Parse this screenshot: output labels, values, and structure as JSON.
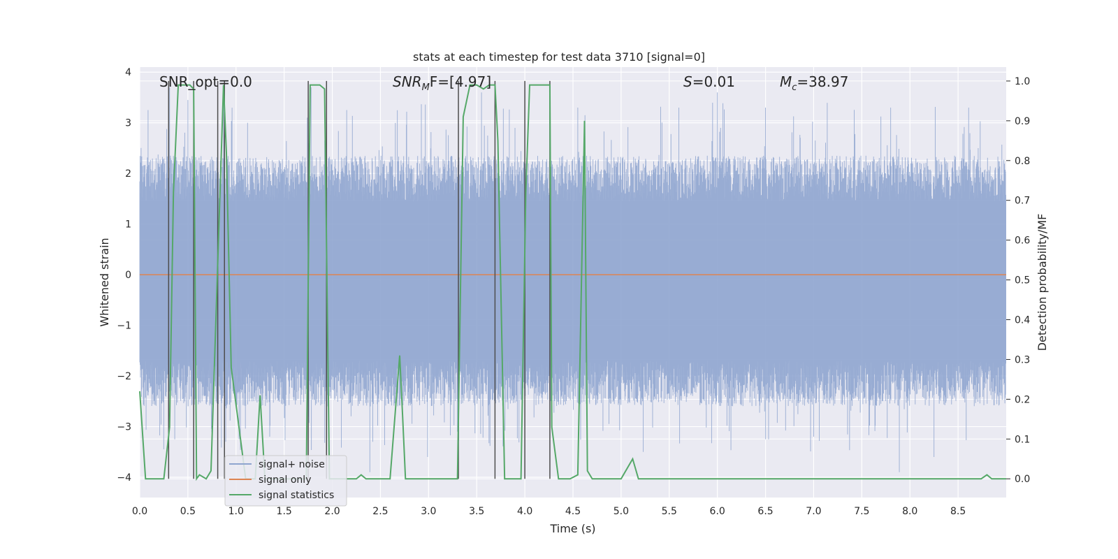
{
  "chart_data": {
    "type": "line",
    "title": "stats at each timestep for test data 3710 [signal=0]",
    "xlabel": "Time (s)",
    "ylabel": "Whitened strain",
    "y2label": "Detection probability/MF",
    "xlim": [
      0,
      9.0
    ],
    "ylim": [
      -4.4,
      4.1
    ],
    "y2lim": [
      -0.047,
      1.035
    ],
    "xticks": [
      0.0,
      0.5,
      1.0,
      1.5,
      2.0,
      2.5,
      3.0,
      3.5,
      4.0,
      4.5,
      5.0,
      5.5,
      6.0,
      6.5,
      7.0,
      7.5,
      8.0,
      8.5
    ],
    "xtick_labels": [
      "0.0",
      "0.5",
      "1.0",
      "1.5",
      "2.0",
      "2.5",
      "3.0",
      "3.5",
      "4.0",
      "4.5",
      "5.0",
      "5.5",
      "6.0",
      "6.5",
      "7.0",
      "7.5",
      "8.0",
      "8.5"
    ],
    "yticks": [
      -4,
      -3,
      -2,
      -1,
      0,
      1,
      2,
      3,
      4
    ],
    "ytick_labels": [
      "−4",
      "−3",
      "−2",
      "−1",
      "0",
      "1",
      "2",
      "3",
      "4"
    ],
    "y2ticks": [
      0.0,
      0.1,
      0.2,
      0.3,
      0.4,
      0.5,
      0.6,
      0.7,
      0.8,
      0.9,
      1.0
    ],
    "y2tick_labels": [
      "0.0",
      "0.1",
      "0.2",
      "0.3",
      "0.4",
      "0.5",
      "0.6",
      "0.7",
      "0.8",
      "0.9",
      "1.0"
    ],
    "grid": true,
    "legend_position": "lower-left",
    "annotations": {
      "snr_opt_prefix": "SNR_opt=",
      "snr_opt_value": "0.0",
      "snr_mf_label": "SNR",
      "snr_mf_sub": "M",
      "snr_mf_rest": "F=[4.97]",
      "s_label": "S",
      "s_rest": "=0.01",
      "mc_label": "M",
      "mc_sub": "c",
      "mc_rest": "=38.97"
    },
    "series": [
      {
        "name": "signal+ noise",
        "color": "#8fa5cf",
        "description_axis": "left",
        "noise_envelope": {
          "typical_low": -1.7,
          "typical_high": 1.45,
          "spike_max": 3.75,
          "spike_min": -3.95
        },
        "spikes": [
          [
            0.31,
            3.7
          ],
          [
            0.5,
            3.45
          ],
          [
            0.56,
            3.6
          ],
          [
            0.87,
            3.75
          ],
          [
            1.12,
            3.0
          ],
          [
            1.35,
            -3.2
          ],
          [
            1.78,
            3.7
          ],
          [
            1.96,
            2.3
          ],
          [
            2.39,
            -3.9
          ],
          [
            2.42,
            -3.3
          ],
          [
            2.99,
            -3.6
          ],
          [
            3.3,
            -3.1
          ],
          [
            3.55,
            3.6
          ],
          [
            4.55,
            3.3
          ],
          [
            5.23,
            -3.5
          ],
          [
            5.6,
            3.3
          ],
          [
            6.0,
            3.6
          ],
          [
            6.5,
            3.3
          ],
          [
            7.0,
            -3.2
          ],
          [
            7.8,
            3.3
          ],
          [
            7.89,
            -3.9
          ],
          [
            8.25,
            -3.6
          ],
          [
            8.61,
            3.3
          ]
        ]
      },
      {
        "name": "signal only",
        "color": "#dd8452",
        "description_axis": "left",
        "x": [
          0,
          9.0
        ],
        "y": [
          0,
          0
        ]
      },
      {
        "name": "signal statistics",
        "color": "#55a868",
        "description_axis": "right",
        "x": [
          0.0,
          0.06,
          0.25,
          0.31,
          0.35,
          0.4,
          0.44,
          0.48,
          0.52,
          0.56,
          0.59,
          0.62,
          0.69,
          0.74,
          0.87,
          0.9,
          0.95,
          1.1,
          1.2,
          1.25,
          1.3,
          1.4,
          1.73,
          1.77,
          1.82,
          1.87,
          1.92,
          1.97,
          2.25,
          2.3,
          2.35,
          2.45,
          2.6,
          2.7,
          2.73,
          2.76,
          2.85,
          2.95,
          3.1,
          3.3,
          3.36,
          3.43,
          3.5,
          3.57,
          3.63,
          3.69,
          3.72,
          3.79,
          3.87,
          3.96,
          4.01,
          4.05,
          4.26,
          4.28,
          4.35,
          4.47,
          4.55,
          4.62,
          4.65,
          4.7,
          4.75,
          5.0,
          5.12,
          5.18,
          8.74,
          8.8,
          8.85,
          9.0
        ],
        "y": [
          0.22,
          0.0,
          0.0,
          0.13,
          0.72,
          0.99,
          0.99,
          0.99,
          0.99,
          0.98,
          0.0,
          0.01,
          0.0,
          0.02,
          0.99,
          0.82,
          0.28,
          0.0,
          0.0,
          0.21,
          0.0,
          0.0,
          0.0,
          0.99,
          0.99,
          0.99,
          0.98,
          0.0,
          0.0,
          0.01,
          0.0,
          0.0,
          0.0,
          0.31,
          0.16,
          0.0,
          0.0,
          0.0,
          0.0,
          0.0,
          0.91,
          0.99,
          0.99,
          0.98,
          0.99,
          0.99,
          0.85,
          0.0,
          0.0,
          0.0,
          0.72,
          0.99,
          0.99,
          0.13,
          0.0,
          0.0,
          0.01,
          0.9,
          0.02,
          0.0,
          0.0,
          0.0,
          0.05,
          0.0,
          0.0,
          0.01,
          0.0,
          0.0
        ]
      }
    ],
    "vertical_markers": [
      0.3,
      0.56,
      0.81,
      0.88,
      1.75,
      1.94,
      3.31,
      3.69,
      4.0,
      4.26
    ]
  }
}
